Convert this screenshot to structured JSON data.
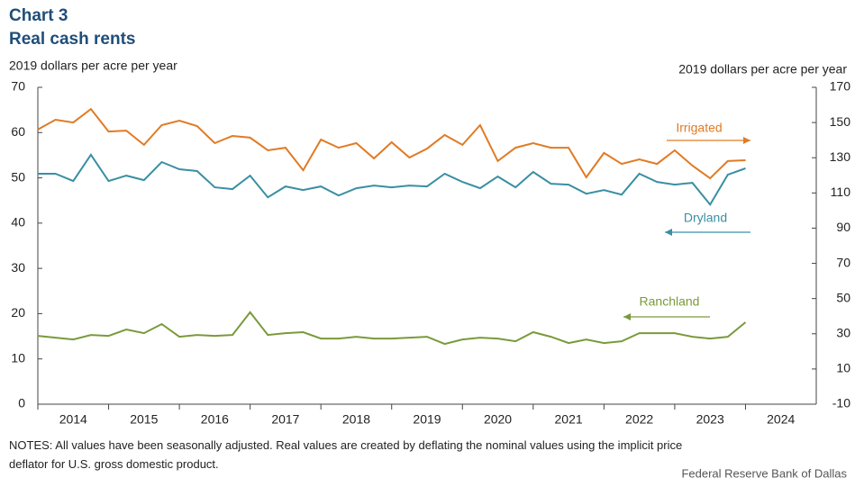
{
  "chart_data": {
    "type": "line",
    "title": "Chart 3",
    "subtitle": "Real cash rents",
    "ylabel": "2019 dollars per acre per year",
    "y2label": "2019 dollars per acre per year",
    "x": [
      2014,
      2014.25,
      2014.5,
      2014.75,
      2015,
      2015.25,
      2015.5,
      2015.75,
      2016,
      2016.25,
      2016.5,
      2016.75,
      2017,
      2017.25,
      2017.5,
      2017.75,
      2018,
      2018.25,
      2018.5,
      2018.75,
      2019,
      2019.25,
      2019.5,
      2019.75,
      2020,
      2020.25,
      2020.5,
      2020.75,
      2021,
      2021.25,
      2021.5,
      2021.75,
      2022,
      2022.25,
      2022.5,
      2022.75,
      2023,
      2023.25,
      2023.5,
      2023.75,
      2024
    ],
    "xlim": [
      2014,
      2025
    ],
    "xticks": [
      2014,
      2015,
      2016,
      2017,
      2018,
      2019,
      2020,
      2021,
      2022,
      2023,
      2024
    ],
    "ylim": [
      0,
      70
    ],
    "yticks": [
      0,
      10,
      20,
      30,
      40,
      50,
      60,
      70
    ],
    "y2lim": [
      -10,
      170
    ],
    "y2ticks": [
      -10,
      10,
      30,
      50,
      70,
      90,
      110,
      130,
      150,
      170
    ],
    "series": [
      {
        "name": "Irrigated",
        "color": "#e07b24",
        "axis": "y2",
        "values": [
          146,
          151.6,
          150,
          157.7,
          144.9,
          145.4,
          137.3,
          148.5,
          151.1,
          148,
          138.3,
          142.4,
          141.4,
          134.2,
          135.7,
          122.9,
          140.3,
          135.7,
          138.3,
          129.6,
          138.8,
          130.1,
          135.2,
          142.9,
          137.3,
          148.5,
          128.1,
          135.7,
          138.3,
          135.7,
          135.7,
          118.9,
          132.7,
          126.5,
          129.1,
          126.5,
          134.2,
          125.5,
          118.3,
          128.1,
          128.6
        ]
      },
      {
        "name": "Dryland",
        "color": "#3a8fa3",
        "axis": "y",
        "values": [
          50.9,
          50.9,
          49.3,
          55.1,
          49.3,
          50.5,
          49.5,
          53.5,
          51.9,
          51.5,
          47.9,
          47.5,
          50.5,
          45.7,
          48.1,
          47.3,
          48.1,
          46.1,
          47.7,
          48.3,
          47.9,
          48.3,
          48.1,
          50.9,
          49.1,
          47.7,
          50.3,
          47.9,
          51.3,
          48.7,
          48.5,
          46.5,
          47.3,
          46.3,
          50.9,
          49.1,
          48.5,
          48.9,
          44.1,
          50.7,
          52.1
        ]
      },
      {
        "name": "Ranchland",
        "color": "#7a9a3a",
        "axis": "y",
        "values": [
          15.1,
          14.7,
          14.3,
          15.3,
          15.1,
          16.5,
          15.7,
          17.7,
          14.9,
          15.3,
          15.1,
          15.3,
          20.3,
          15.3,
          15.7,
          15.9,
          14.5,
          14.5,
          14.9,
          14.5,
          14.5,
          14.7,
          14.9,
          13.3,
          14.3,
          14.7,
          14.5,
          13.9,
          15.9,
          14.9,
          13.5,
          14.3,
          13.5,
          13.9,
          15.7,
          15.7,
          15.7,
          14.9,
          14.5,
          14.9,
          18.1
        ]
      }
    ],
    "notes": "NOTES: All values have been seasonally adjusted. Real values are created by deflating the nominal values using the implicit price deflator for U.S. gross domestic product.",
    "source": "Federal Reserve Bank of Dallas"
  }
}
